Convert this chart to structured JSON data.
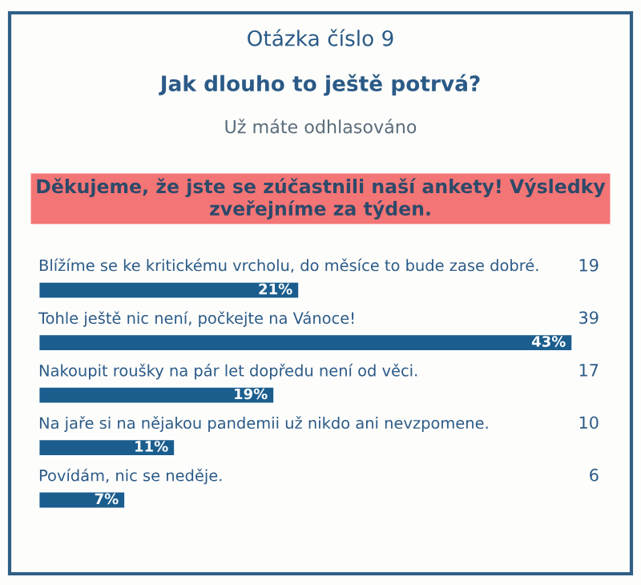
{
  "chart_data": {
    "type": "bar",
    "orientation": "horizontal",
    "title": "Otázka číslo 9",
    "subtitle": "Jak dlouho to ještě potrvá?",
    "categories": [
      "Blížíme se ke kritickému vrcholu, do měsíce to bude zase dobré.",
      "Tohle ještě nic není, počkejte na Vánoce!",
      "Nakoupit roušky na pár let dopředu není od věci.",
      "Na jaře si na nějakou pandemii už nikdo ani nevzpomene.",
      "Povídám, nic se neděje."
    ],
    "values": [
      21,
      43,
      19,
      11,
      7
    ],
    "value_labels": [
      "21%",
      "43%",
      "19%",
      "11%",
      "7%"
    ],
    "color": "#1b5e8e",
    "tick_labels": false,
    "annotations": [
      "Už máte odhlasováno",
      "Děkujeme, že jste se zúčastnili naší ankety! Výsledky zveřejníme za týden.",
      "19",
      "39",
      "17",
      "10",
      "6"
    ]
  }
}
